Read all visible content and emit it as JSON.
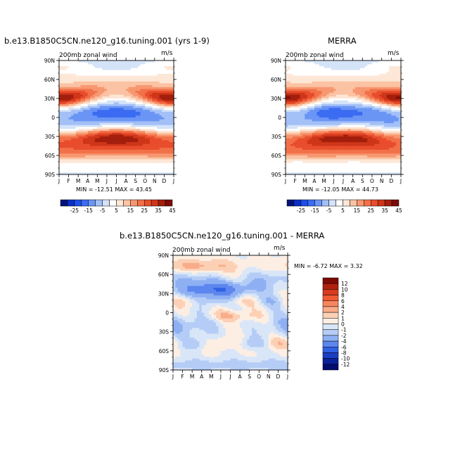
{
  "chart_data": [
    {
      "type": "heatmap",
      "title": "b.e13.B1850C5CN.ne120_g16.tuning.001 (yrs 1-9)",
      "subtitle": "200mb zonal wind",
      "units": "m/s",
      "x_ticks": [
        "J",
        "F",
        "M",
        "A",
        "M",
        "J",
        "J",
        "A",
        "S",
        "O",
        "N",
        "D",
        "J"
      ],
      "y_ticks": [
        "90S",
        "60S",
        "30S",
        "0",
        "30N",
        "60N",
        "90N"
      ],
      "ylim": [
        -90,
        90
      ],
      "stats": {
        "min": "-12.51",
        "max": "43.45"
      },
      "stats_text": "MIN = -12.51 MAX =   43.45",
      "levels": [
        -25,
        -20,
        -15,
        -10,
        -5,
        0,
        5,
        10,
        15,
        20,
        25,
        30,
        35,
        40,
        45
      ],
      "colorbar_labels": [
        "-25",
        "-15",
        "-5",
        "5",
        "15",
        "25",
        "35",
        "45"
      ]
    },
    {
      "type": "heatmap",
      "title": "MERRA",
      "subtitle": "200mb zonal wind",
      "units": "m/s",
      "x_ticks": [
        "J",
        "F",
        "M",
        "A",
        "M",
        "J",
        "J",
        "A",
        "S",
        "O",
        "N",
        "D",
        "J"
      ],
      "y_ticks": [
        "90S",
        "60S",
        "30S",
        "0",
        "30N",
        "60N",
        "90N"
      ],
      "ylim": [
        -90,
        90
      ],
      "stats": {
        "min": "-12.05",
        "max": "44.73"
      },
      "stats_text": "MIN = -12.05 MAX =   44.73",
      "levels": [
        -25,
        -20,
        -15,
        -10,
        -5,
        0,
        5,
        10,
        15,
        20,
        25,
        30,
        35,
        40,
        45
      ],
      "colorbar_labels": [
        "-25",
        "-15",
        "-5",
        "5",
        "15",
        "25",
        "35",
        "45"
      ]
    },
    {
      "type": "heatmap",
      "title": "b.e13.B1850C5CN.ne120_g16.tuning.001 - MERRA",
      "subtitle": "200mb zonal wind",
      "units": "m/s",
      "x_ticks": [
        "J",
        "F",
        "M",
        "A",
        "M",
        "J",
        "J",
        "A",
        "S",
        "O",
        "N",
        "D",
        "J"
      ],
      "y_ticks": [
        "90S",
        "60S",
        "30S",
        "0",
        "30N",
        "60N",
        "90N"
      ],
      "ylim": [
        -90,
        90
      ],
      "stats": {
        "min": "-6.72",
        "max": "3.32"
      },
      "stats_text": "MIN =   -6.72 MAX =   3.32",
      "levels": [
        12,
        10,
        8,
        6,
        4,
        2,
        1,
        0,
        -1,
        -2,
        -4,
        -6,
        -8,
        -10,
        -12
      ],
      "colorbar_labels": [
        "12",
        "10",
        "8",
        "6",
        "4",
        "2",
        "1",
        "0",
        "-1",
        "-2",
        "-4",
        "-6",
        "-8",
        "-10",
        "-12"
      ]
    }
  ],
  "colors": {
    "abs_scale": [
      "#00137a",
      "#0a2fc8",
      "#1f4fe6",
      "#3b6cf2",
      "#6a95f5",
      "#a3c0f7",
      "#d4e3f8",
      "#ffffff",
      "#fde7d7",
      "#fbc3a3",
      "#f79770",
      "#f27149",
      "#e84d2c",
      "#cf3619",
      "#a31e0c",
      "#7d0a05"
    ],
    "diff_scale": [
      "#7d0a05",
      "#b1200e",
      "#d93b1e",
      "#f05b34",
      "#f6865e",
      "#f9ac8a",
      "#fcd0b5",
      "#fdeee3",
      "#d9e6f8",
      "#b5cdf6",
      "#8eb0f3",
      "#5d86ee",
      "#3161e4",
      "#1a3fc4",
      "#0a219a",
      "#000d6e"
    ]
  }
}
